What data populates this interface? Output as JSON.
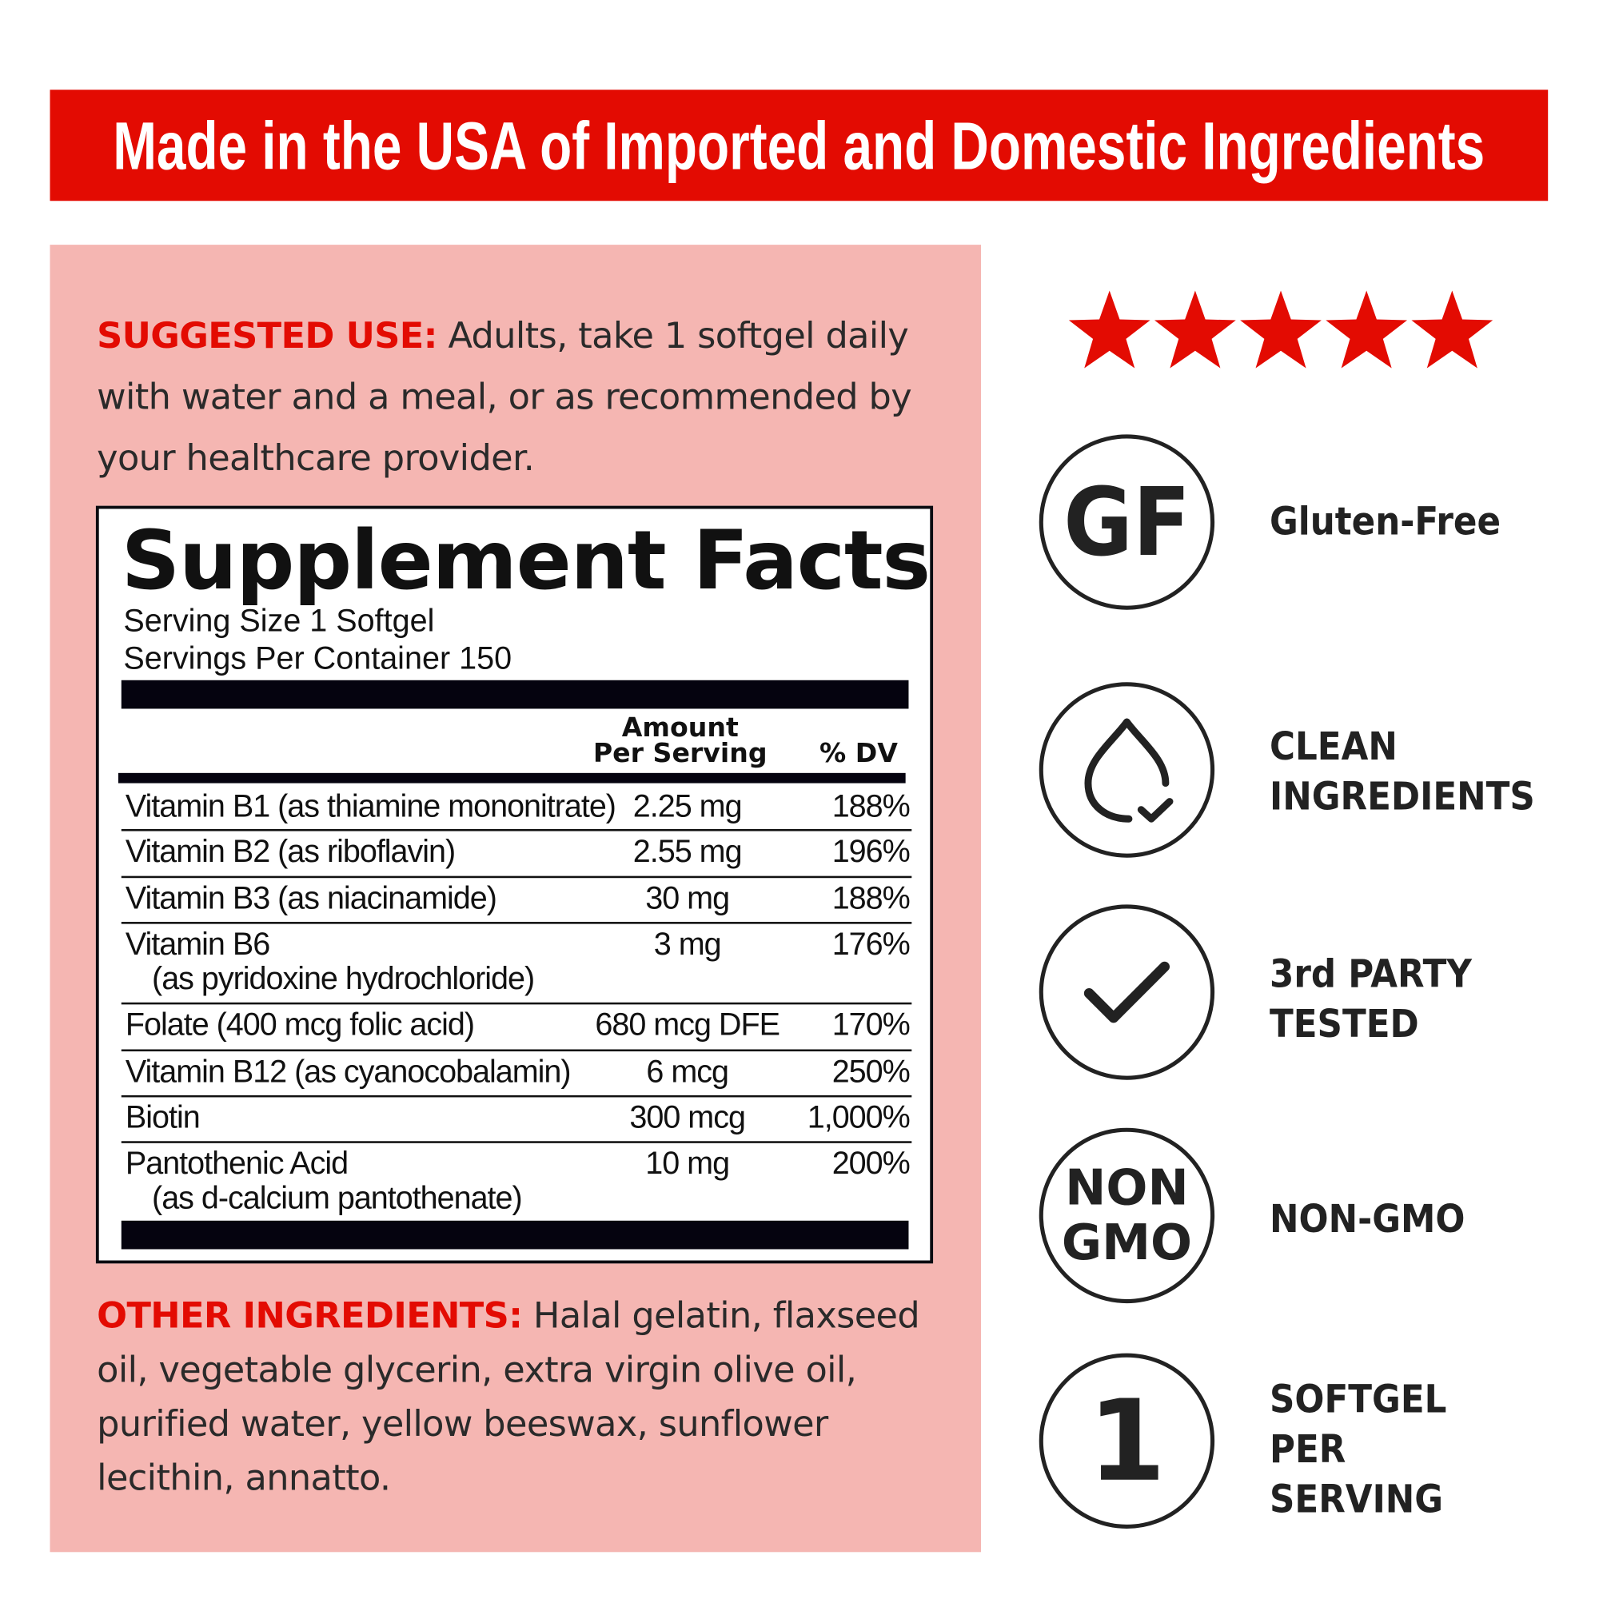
{
  "colors": {
    "accent_red": "#e30b02",
    "panel_pink": "#f5b6b2",
    "text_dark": "#222222"
  },
  "banner": {
    "text": "Made in the USA of Imported and Domestic Ingredients"
  },
  "suggested_use": {
    "label": "SUGGESTED USE:",
    "text": " Adults, take 1 softgel daily with water and a meal, or as recommended by your healthcare provider."
  },
  "supplement_facts": {
    "title": "Supplement Facts",
    "serving_size": "Serving Size 1 Softgel",
    "servings_per_container": "Servings Per Container 150",
    "header_amount_1": "Amount",
    "header_amount_2": "Per Serving",
    "header_dv": "% DV",
    "rows": [
      {
        "name": "Vitamin B1 (as thiamine mononitrate)",
        "sub": "",
        "amount": "2.25 mg",
        "dv": "188%"
      },
      {
        "name": "Vitamin B2 (as riboflavin)",
        "sub": "",
        "amount": "2.55 mg",
        "dv": "196%"
      },
      {
        "name": "Vitamin B3 (as niacinamide)",
        "sub": "",
        "amount": "30 mg",
        "dv": "188%"
      },
      {
        "name": "Vitamin B6",
        "sub": "(as pyridoxine hydrochloride)",
        "amount": "3 mg",
        "dv": "176%"
      },
      {
        "name": "Folate (400 mcg folic acid)",
        "sub": "",
        "amount": "680 mcg DFE",
        "dv": "170%"
      },
      {
        "name": "Vitamin B12 (as cyanocobalamin)",
        "sub": "",
        "amount": "6 mcg",
        "dv": "250%"
      },
      {
        "name": "Biotin",
        "sub": "",
        "amount": "300 mcg",
        "dv": "1,000%"
      },
      {
        "name": "Pantothenic Acid",
        "sub": "(as d-calcium pantothenate)",
        "amount": "10 mg",
        "dv": "200%"
      }
    ]
  },
  "other_ingredients": {
    "label": "OTHER INGREDIENTS:",
    "text": " Halal gelatin, flaxseed oil, vegetable glycerin, extra virgin olive oil, purified water, yellow beeswax, sunflower lecithin, annatto."
  },
  "rating": {
    "stars": 5,
    "max": 5,
    "icon": "star-icon"
  },
  "badges": [
    {
      "icon": "gf-text",
      "icon_text": "GF",
      "label": "Gluten-Free"
    },
    {
      "icon": "drop-check-icon",
      "label": "CLEAN\nINGREDIENTS"
    },
    {
      "icon": "check-icon",
      "label": "3rd PARTY\nTESTED"
    },
    {
      "icon": "non-gmo-text",
      "icon_text_1": "NON",
      "icon_text_2": "GMO",
      "label": "NON-GMO"
    },
    {
      "icon": "one-text",
      "icon_text": "1",
      "label": "SOFTGEL\nPER\nSERVING"
    }
  ]
}
